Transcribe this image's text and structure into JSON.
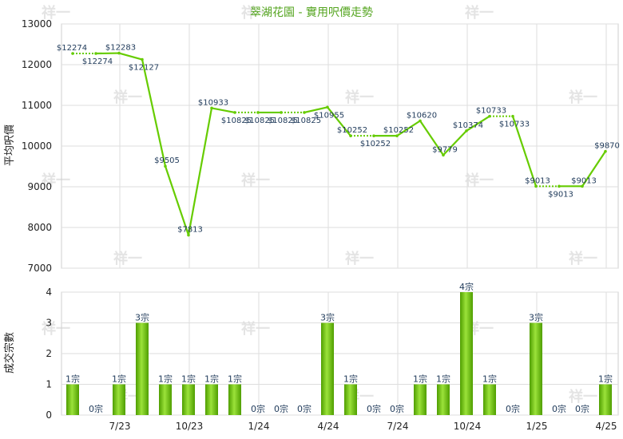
{
  "chart_data": [
    {
      "type": "line",
      "title": "翠湖花園 - 實用呎價走勢",
      "ylabel": "平均呎價",
      "ylim": [
        7000,
        13000
      ],
      "yticks": [
        7000,
        8000,
        9000,
        10000,
        11000,
        12000,
        13000
      ],
      "x": [
        "2023-05",
        "2023-06",
        "2023-07",
        "2023-08",
        "2023-09",
        "2023-10",
        "2023-11",
        "2023-12",
        "2024-01",
        "2024-02",
        "2024-03",
        "2024-04",
        "2024-05",
        "2024-06",
        "2024-07",
        "2024-08",
        "2024-09",
        "2024-10",
        "2024-11",
        "2024-12",
        "2025-01",
        "2025-02",
        "2025-03",
        "2025-04"
      ],
      "values": [
        12274,
        12274,
        12283,
        12127,
        9505,
        7813,
        10933,
        10825,
        10825,
        10825,
        10825,
        10955,
        10252,
        10252,
        10252,
        10620,
        9779,
        10374,
        10733,
        10733,
        9013,
        9013,
        9013,
        9870
      ],
      "data_labels": [
        "$12274",
        "$12274",
        "$12283",
        "$12127",
        "$9505",
        "$7813",
        "$10933",
        "$10825",
        "$10825",
        "$10825",
        "$10825",
        "$10955",
        "$10252",
        "$10252",
        "$10252",
        "$10620",
        "$9779",
        "$10374",
        "$10733",
        "$10733",
        "$9013",
        "$9013",
        "$9013",
        "$9870"
      ],
      "carried_forward": [
        false,
        true,
        false,
        false,
        false,
        false,
        false,
        false,
        true,
        false,
        true,
        false,
        false,
        true,
        false,
        false,
        false,
        false,
        false,
        true,
        false,
        true,
        false,
        false
      ],
      "color": "#66cc00",
      "grid": true
    },
    {
      "type": "bar",
      "ylabel": "成交宗數",
      "ylim": [
        0,
        4
      ],
      "yticks": [
        0,
        1,
        2,
        3,
        4
      ],
      "xtick_labels": [
        "7/23",
        "10/23",
        "1/24",
        "4/24",
        "7/24",
        "10/24",
        "1/25",
        "4/25"
      ],
      "xtick_index": [
        2,
        5,
        8,
        11,
        14,
        17,
        20,
        23
      ],
      "values": [
        1,
        0,
        1,
        3,
        1,
        1,
        1,
        1,
        0,
        0,
        0,
        3,
        1,
        0,
        0,
        1,
        1,
        4,
        1,
        0,
        3,
        0,
        0,
        1
      ],
      "data_labels": [
        "1宗",
        "0宗",
        "1宗",
        "3宗",
        "1宗",
        "1宗",
        "1宗",
        "1宗",
        "0宗",
        "0宗",
        "0宗",
        "3宗",
        "1宗",
        "0宗",
        "0宗",
        "1宗",
        "1宗",
        "4宗",
        "1宗",
        "0宗",
        "3宗",
        "0宗",
        "0宗",
        "1宗"
      ],
      "color": "#66cc00",
      "grid": true
    }
  ],
  "watermark": "祥一"
}
